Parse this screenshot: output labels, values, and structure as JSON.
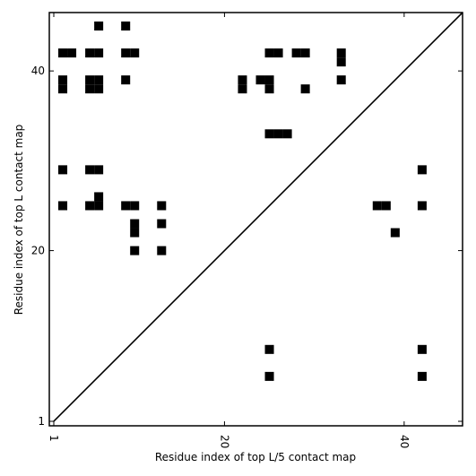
{
  "chart_data": {
    "type": "scatter",
    "marker": "square",
    "color": "#000000",
    "xlabel": "Residue index of top L/5 contact map",
    "ylabel": "Residue index of top L contact map",
    "xlim": [
      0.5,
      46.5
    ],
    "ylim": [
      0.5,
      46.5
    ],
    "xticks": [
      1,
      20,
      40
    ],
    "yticks": [
      1,
      20,
      40
    ],
    "x": [
      6,
      9,
      2,
      3,
      5,
      6,
      9,
      10,
      25,
      26,
      28,
      29,
      33,
      33,
      2,
      2,
      5,
      6,
      5,
      6,
      9,
      22,
      22,
      24,
      25,
      25,
      29,
      33,
      25,
      26,
      27,
      2,
      5,
      6,
      42,
      6,
      2,
      5,
      6,
      9,
      10,
      13,
      37,
      38,
      42,
      10,
      10,
      13,
      39,
      10,
      13,
      25,
      42,
      25,
      42
    ],
    "y": [
      45,
      45,
      42,
      42,
      42,
      42,
      42,
      42,
      42,
      42,
      42,
      42,
      42,
      41,
      39,
      38,
      39,
      39,
      38,
      38,
      39,
      39,
      38,
      39,
      39,
      38,
      38,
      39,
      33,
      33,
      33,
      29,
      29,
      29,
      29,
      26,
      25,
      25,
      25,
      25,
      25,
      25,
      25,
      25,
      25,
      23,
      22,
      23,
      22,
      20,
      20,
      9,
      9,
      6,
      6
    ]
  }
}
